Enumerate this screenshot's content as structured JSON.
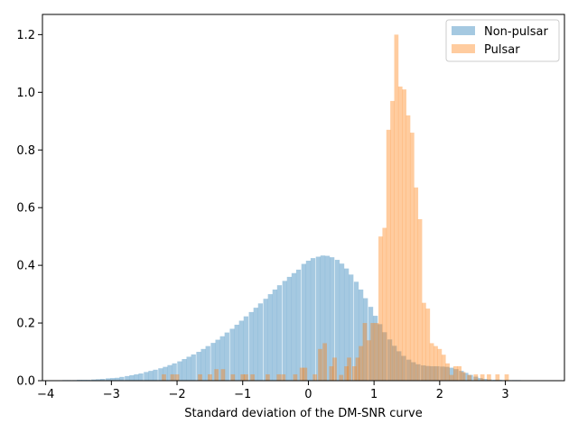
{
  "chart_data": {
    "type": "histogram",
    "title": "",
    "xlabel": "Standard deviation of the DM-SNR curve",
    "ylabel": "",
    "xlim": [
      -4.05,
      3.9
    ],
    "ylim": [
      0,
      1.27
    ],
    "xticks": [
      -4,
      -3,
      -2,
      -1,
      0,
      1,
      2,
      3
    ],
    "yticks": [
      0.0,
      0.2,
      0.4,
      0.6,
      0.8,
      1.0,
      1.2
    ],
    "grid": false,
    "legend_position": "top-right",
    "alpha": 0.4,
    "series": [
      {
        "name": "Non-pulsar",
        "color": "#1f77b4",
        "bin_width": 0.0727,
        "bins": [
          [
            -3.71,
            0.002
          ],
          [
            -3.64,
            0.002
          ],
          [
            -3.56,
            0.002
          ],
          [
            -3.49,
            0.003
          ],
          [
            -3.42,
            0.003
          ],
          [
            -3.35,
            0.003
          ],
          [
            -3.27,
            0.004
          ],
          [
            -3.2,
            0.005
          ],
          [
            -3.13,
            0.006
          ],
          [
            -3.05,
            0.008
          ],
          [
            -2.98,
            0.009
          ],
          [
            -2.91,
            0.01
          ],
          [
            -2.84,
            0.013
          ],
          [
            -2.76,
            0.016
          ],
          [
            -2.69,
            0.019
          ],
          [
            -2.62,
            0.022
          ],
          [
            -2.55,
            0.025
          ],
          [
            -2.47,
            0.03
          ],
          [
            -2.4,
            0.034
          ],
          [
            -2.33,
            0.038
          ],
          [
            -2.25,
            0.043
          ],
          [
            -2.18,
            0.048
          ],
          [
            -2.11,
            0.054
          ],
          [
            -2.04,
            0.06
          ],
          [
            -1.96,
            0.067
          ],
          [
            -1.89,
            0.075
          ],
          [
            -1.82,
            0.083
          ],
          [
            -1.75,
            0.091
          ],
          [
            -1.67,
            0.1
          ],
          [
            -1.6,
            0.11
          ],
          [
            -1.53,
            0.12
          ],
          [
            -1.45,
            0.131
          ],
          [
            -1.38,
            0.142
          ],
          [
            -1.31,
            0.154
          ],
          [
            -1.24,
            0.167
          ],
          [
            -1.16,
            0.18
          ],
          [
            -1.09,
            0.194
          ],
          [
            -1.02,
            0.208
          ],
          [
            -0.95,
            0.223
          ],
          [
            -0.87,
            0.238
          ],
          [
            -0.8,
            0.253
          ],
          [
            -0.73,
            0.268
          ],
          [
            -0.65,
            0.284
          ],
          [
            -0.58,
            0.3
          ],
          [
            -0.51,
            0.316
          ],
          [
            -0.44,
            0.331
          ],
          [
            -0.36,
            0.346
          ],
          [
            -0.29,
            0.36
          ],
          [
            -0.22,
            0.373
          ],
          [
            -0.15,
            0.385
          ],
          [
            -0.07,
            0.405
          ],
          [
            0.0,
            0.416
          ],
          [
            0.07,
            0.425
          ],
          [
            0.15,
            0.43
          ],
          [
            0.22,
            0.434
          ],
          [
            0.29,
            0.433
          ],
          [
            0.36,
            0.428
          ],
          [
            0.44,
            0.419
          ],
          [
            0.51,
            0.406
          ],
          [
            0.58,
            0.389
          ],
          [
            0.65,
            0.368
          ],
          [
            0.73,
            0.343
          ],
          [
            0.8,
            0.316
          ],
          [
            0.87,
            0.286
          ],
          [
            0.95,
            0.256
          ],
          [
            1.02,
            0.225
          ],
          [
            1.09,
            0.196
          ],
          [
            1.16,
            0.168
          ],
          [
            1.24,
            0.143
          ],
          [
            1.31,
            0.121
          ],
          [
            1.38,
            0.102
          ],
          [
            1.45,
            0.086
          ],
          [
            1.53,
            0.073
          ],
          [
            1.6,
            0.064
          ],
          [
            1.67,
            0.057
          ],
          [
            1.75,
            0.053
          ],
          [
            1.82,
            0.051
          ],
          [
            1.89,
            0.05
          ],
          [
            1.96,
            0.05
          ],
          [
            2.04,
            0.049
          ],
          [
            2.11,
            0.048
          ],
          [
            2.18,
            0.045
          ],
          [
            2.25,
            0.04
          ],
          [
            2.33,
            0.034
          ],
          [
            2.4,
            0.027
          ],
          [
            2.47,
            0.02
          ],
          [
            2.55,
            0.014
          ],
          [
            2.62,
            0.009
          ],
          [
            2.69,
            0.006
          ],
          [
            2.76,
            0.004
          ],
          [
            2.84,
            0.003
          ],
          [
            2.91,
            0.003
          ],
          [
            2.98,
            0.002
          ],
          [
            3.05,
            0.002
          ],
          [
            3.13,
            0.002
          ],
          [
            3.2,
            0.002
          ],
          [
            3.27,
            0.001
          ],
          [
            3.35,
            0.001
          ],
          [
            3.42,
            0.001
          ],
          [
            3.49,
            0.001
          ]
        ]
      },
      {
        "name": "Pulsar",
        "color": "#ff7f0e",
        "bin_width": 0.065,
        "bins": [
          [
            -2.2,
            0.022
          ],
          [
            -2.07,
            0.022
          ],
          [
            -2.0,
            0.022
          ],
          [
            -1.65,
            0.022
          ],
          [
            -1.5,
            0.022
          ],
          [
            -1.4,
            0.04
          ],
          [
            -1.3,
            0.04
          ],
          [
            -1.15,
            0.022
          ],
          [
            -1.0,
            0.022
          ],
          [
            -0.95,
            0.022
          ],
          [
            -0.85,
            0.022
          ],
          [
            -0.62,
            0.022
          ],
          [
            -0.45,
            0.022
          ],
          [
            -0.38,
            0.022
          ],
          [
            -0.2,
            0.022
          ],
          [
            -0.1,
            0.045
          ],
          [
            -0.05,
            0.045
          ],
          [
            0.1,
            0.022
          ],
          [
            0.18,
            0.11
          ],
          [
            0.25,
            0.13
          ],
          [
            0.35,
            0.05
          ],
          [
            0.4,
            0.08
          ],
          [
            0.5,
            0.02
          ],
          [
            0.58,
            0.05
          ],
          [
            0.62,
            0.08
          ],
          [
            0.7,
            0.05
          ],
          [
            0.75,
            0.08
          ],
          [
            0.8,
            0.12
          ],
          [
            0.86,
            0.2
          ],
          [
            0.92,
            0.14
          ],
          [
            0.98,
            0.2
          ],
          [
            1.04,
            0.2
          ],
          [
            1.1,
            0.5
          ],
          [
            1.16,
            0.53
          ],
          [
            1.22,
            0.87
          ],
          [
            1.28,
            0.97
          ],
          [
            1.34,
            1.2
          ],
          [
            1.4,
            1.02
          ],
          [
            1.46,
            1.01
          ],
          [
            1.52,
            0.92
          ],
          [
            1.58,
            0.86
          ],
          [
            1.64,
            0.67
          ],
          [
            1.7,
            0.56
          ],
          [
            1.76,
            0.27
          ],
          [
            1.82,
            0.25
          ],
          [
            1.88,
            0.13
          ],
          [
            1.94,
            0.12
          ],
          [
            2.0,
            0.11
          ],
          [
            2.06,
            0.09
          ],
          [
            2.12,
            0.06
          ],
          [
            2.18,
            0.02
          ],
          [
            2.24,
            0.05
          ],
          [
            2.3,
            0.05
          ],
          [
            2.36,
            0.03
          ],
          [
            2.45,
            0.02
          ],
          [
            2.55,
            0.022
          ],
          [
            2.65,
            0.022
          ],
          [
            2.75,
            0.022
          ],
          [
            2.88,
            0.022
          ],
          [
            3.02,
            0.022
          ]
        ]
      }
    ]
  }
}
